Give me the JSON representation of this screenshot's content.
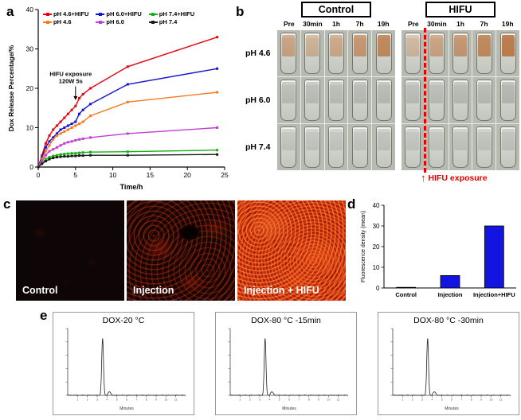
{
  "panel_labels": {
    "a": "a",
    "b": "b",
    "c": "c",
    "d": "d",
    "e": "e"
  },
  "panels": {
    "b": {
      "groups": [
        {
          "title": "Control",
          "columns": [
            "Pre",
            "30min",
            "1h",
            "7h",
            "19h"
          ]
        },
        {
          "title": "HIFU",
          "columns": [
            "Pre",
            "30min",
            "1h",
            "7h",
            "19h"
          ]
        }
      ],
      "rows": [
        {
          "label": "pH 4.6",
          "tint": "#b4682f",
          "control_stain": [
            0.5,
            0.38,
            0.45,
            0.6,
            0.72
          ],
          "hifu_stain": [
            0.32,
            0.5,
            0.6,
            0.72,
            0.82
          ]
        },
        {
          "label": "pH 6.0",
          "tint": "#8f948c",
          "control_stain": [
            0.42,
            0.42,
            0.42,
            0.46,
            0.46
          ],
          "hifu_stain": [
            0.42,
            0.42,
            0.46,
            0.46,
            0.5
          ]
        },
        {
          "label": "pH 7.4",
          "tint": "#9aa098",
          "control_stain": [
            0.38,
            0.38,
            0.38,
            0.38,
            0.42
          ],
          "hifu_stain": [
            0.38,
            0.38,
            0.4,
            0.4,
            0.42
          ]
        }
      ],
      "dashed_line_color": "#e60000",
      "footer_arrow": "↑",
      "footer_text": "HIFU exposure"
    },
    "c": {
      "images": [
        {
          "caption": "Control"
        },
        {
          "caption": "Injection"
        },
        {
          "caption": "Injection + HIFU"
        }
      ]
    }
  },
  "chart_data": [
    {
      "id": "panel-a",
      "type": "line",
      "xlabel": "Time/h",
      "ylabel": "Dox Release Percentage/%",
      "xlim": [
        0,
        25
      ],
      "ylim": [
        0,
        40
      ],
      "xticks": [
        0,
        5,
        10,
        15,
        20,
        25
      ],
      "yticks": [
        0,
        10,
        20,
        30,
        40
      ],
      "x": [
        0,
        0.5,
        1,
        1.5,
        2,
        2.5,
        3,
        3.5,
        4,
        4.5,
        5,
        5.5,
        6,
        7,
        12,
        24
      ],
      "series": [
        {
          "name": "pH 4.6+HIFU",
          "color": "#e60012",
          "values": [
            0,
            3,
            6,
            8,
            9.5,
            10.5,
            11.5,
            12.5,
            13.5,
            14.5,
            15.5,
            17.5,
            18.5,
            20,
            25.5,
            33
          ]
        },
        {
          "name": "pH 6.0+HIFU",
          "color": "#1414cd",
          "values": [
            0,
            2.5,
            5,
            6.5,
            7.5,
            8.5,
            9.5,
            10,
            10.5,
            11,
            11.5,
            13.5,
            14.5,
            16,
            21,
            25
          ]
        },
        {
          "name": "pH 7.4+HIFU",
          "color": "#12b212",
          "values": [
            0,
            1,
            2,
            2.5,
            2.8,
            3,
            3.2,
            3.3,
            3.4,
            3.5,
            3.5,
            3.6,
            3.7,
            3.8,
            3.9,
            4.3
          ]
        },
        {
          "name": "pH 4.6",
          "color": "#f57a1e",
          "values": [
            0,
            2,
            4,
            5.5,
            7,
            8,
            8.5,
            9,
            9.5,
            10,
            10.5,
            11,
            11.5,
            13,
            16.5,
            19
          ]
        },
        {
          "name": "pH 6.0",
          "color": "#c03ed0",
          "values": [
            0,
            1.5,
            3,
            4,
            4.5,
            5,
            5.5,
            6,
            6.3,
            6.5,
            6.8,
            7,
            7.2,
            7.5,
            8.5,
            10
          ]
        },
        {
          "name": "pH 7.4",
          "color": "#1a1a1a",
          "values": [
            0,
            0.8,
            1.5,
            2,
            2.3,
            2.5,
            2.6,
            2.7,
            2.7,
            2.8,
            2.8,
            2.9,
            2.9,
            3,
            3,
            3.2
          ]
        }
      ],
      "annotation": {
        "line1": "HIFU exposure",
        "line2": "120W 5s",
        "arrow_x": 5,
        "arrow_from_y": 20.5,
        "arrow_to_y": 17
      }
    },
    {
      "id": "panel-d",
      "type": "bar",
      "ylabel": "Fluorescence density (mean)",
      "categories": [
        "Control",
        "Injection",
        "Injection+HIFU"
      ],
      "values": [
        0.3,
        6,
        30
      ],
      "ylim": [
        0,
        40
      ],
      "yticks": [
        0,
        10,
        20,
        30,
        40
      ],
      "bar_color": "#1414e0"
    },
    {
      "id": "panel-e",
      "type": "line",
      "charts": [
        {
          "title": "DOX-20 °C"
        },
        {
          "title": "DOX-80 °C -15min"
        },
        {
          "title": "DOX-80 °C -30min"
        }
      ],
      "xlabel": "Minutes",
      "xlim": [
        0,
        12
      ],
      "peak": {
        "center_minute": 3.55,
        "sigma": 0.09,
        "relative_height": 0.85
      },
      "secondary_bump": {
        "center_minute": 4.25,
        "sigma": 0.14,
        "relative_height": 0.05
      }
    }
  ]
}
